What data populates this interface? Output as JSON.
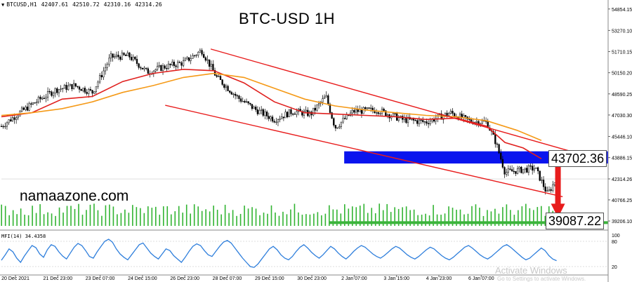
{
  "header": {
    "symbol": "BTCUSD,H1",
    "open": "42407.61",
    "high": "42510.72",
    "low": "42310.16",
    "close": "42314.26"
  },
  "title": "BTC-USD 1H",
  "brand": "namaazone.com",
  "price_labels": {
    "resistance": "43702.36",
    "target": "39087.22"
  },
  "mfi_label": "MFI(14) 34.4358",
  "watermark": {
    "line1": "Activate Windows",
    "line2": "Go to Settings to activate Windows."
  },
  "colors": {
    "candle": "#000000",
    "ema_red": "#e0201e",
    "ema_orange": "#f59a18",
    "channel": "#e81c1c",
    "resistance_zone": "#0a14ee",
    "support_line": "#3cb43c",
    "arrow": "#e81c1c",
    "volume": "#32b432",
    "mfi": "#2f7fdc"
  },
  "chart_data": {
    "type": "candlestick",
    "title": "BTC-USD 1H",
    "symbol": "BTCUSD",
    "timeframe": "H1",
    "y_axis": {
      "ticks": [
        "54854.15",
        "53270.10",
        "51710.15",
        "50150.20",
        "48590.25",
        "47030.30",
        "45446.10",
        "43886.15",
        "42314.26",
        "40766.25",
        "39206.10"
      ],
      "current_price": "42314.26",
      "range": [
        38950,
        55000
      ]
    },
    "x_axis": {
      "ticks": [
        "20 Dec 2021",
        "21 Dec 23:00",
        "23 Dec 07:00",
        "24 Dec 15:00",
        "26 Dec 23:00",
        "28 Dec 07:00",
        "29 Dec 15:00",
        "30 Dec 23:00",
        "2 Jan 07:00",
        "3 Jan 15:00",
        "4 Jan 23:00",
        "6 Jan 07:00"
      ]
    },
    "price_path": [
      {
        "t": 0,
        "p": 46200
      },
      {
        "t": 0.03,
        "p": 47200
      },
      {
        "t": 0.06,
        "p": 48100
      },
      {
        "t": 0.09,
        "p": 48900
      },
      {
        "t": 0.12,
        "p": 49200
      },
      {
        "t": 0.15,
        "p": 48700
      },
      {
        "t": 0.18,
        "p": 51300
      },
      {
        "t": 0.21,
        "p": 51400
      },
      {
        "t": 0.24,
        "p": 50200
      },
      {
        "t": 0.27,
        "p": 50600
      },
      {
        "t": 0.3,
        "p": 50900
      },
      {
        "t": 0.33,
        "p": 51800
      },
      {
        "t": 0.355,
        "p": 49800
      },
      {
        "t": 0.39,
        "p": 48300
      },
      {
        "t": 0.42,
        "p": 47400
      },
      {
        "t": 0.45,
        "p": 46700
      },
      {
        "t": 0.48,
        "p": 47300
      },
      {
        "t": 0.51,
        "p": 47100
      },
      {
        "t": 0.535,
        "p": 48400
      },
      {
        "t": 0.55,
        "p": 46100
      },
      {
        "t": 0.58,
        "p": 47300
      },
      {
        "t": 0.62,
        "p": 47400
      },
      {
        "t": 0.66,
        "p": 46700
      },
      {
        "t": 0.7,
        "p": 46500
      },
      {
        "t": 0.74,
        "p": 47200
      },
      {
        "t": 0.77,
        "p": 46600
      },
      {
        "t": 0.8,
        "p": 46500
      },
      {
        "t": 0.815,
        "p": 45000
      },
      {
        "t": 0.83,
        "p": 42800
      },
      {
        "t": 0.86,
        "p": 43000
      },
      {
        "t": 0.88,
        "p": 43100
      },
      {
        "t": 0.9,
        "p": 41200
      },
      {
        "t": 0.915,
        "p": 42314
      }
    ],
    "series": [
      {
        "name": "MA red",
        "values": [
          {
            "t": 0,
            "p": 46900
          },
          {
            "t": 0.05,
            "p": 47200
          },
          {
            "t": 0.1,
            "p": 48200
          },
          {
            "t": 0.15,
            "p": 48400
          },
          {
            "t": 0.2,
            "p": 49500
          },
          {
            "t": 0.25,
            "p": 50100
          },
          {
            "t": 0.3,
            "p": 50400
          },
          {
            "t": 0.35,
            "p": 50300
          },
          {
            "t": 0.4,
            "p": 49400
          },
          {
            "t": 0.45,
            "p": 48000
          },
          {
            "t": 0.5,
            "p": 47200
          },
          {
            "t": 0.55,
            "p": 47100
          },
          {
            "t": 0.6,
            "p": 47000
          },
          {
            "t": 0.65,
            "p": 46900
          },
          {
            "t": 0.7,
            "p": 46700
          },
          {
            "t": 0.75,
            "p": 46800
          },
          {
            "t": 0.8,
            "p": 46200
          },
          {
            "t": 0.83,
            "p": 45000
          },
          {
            "t": 0.86,
            "p": 44600
          },
          {
            "t": 0.89,
            "p": 43800
          }
        ]
      },
      {
        "name": "MA orange",
        "values": [
          {
            "t": 0,
            "p": 47000
          },
          {
            "t": 0.05,
            "p": 47200
          },
          {
            "t": 0.1,
            "p": 47500
          },
          {
            "t": 0.15,
            "p": 48000
          },
          {
            "t": 0.2,
            "p": 48700
          },
          {
            "t": 0.25,
            "p": 49200
          },
          {
            "t": 0.3,
            "p": 49800
          },
          {
            "t": 0.35,
            "p": 50100
          },
          {
            "t": 0.4,
            "p": 49800
          },
          {
            "t": 0.45,
            "p": 49000
          },
          {
            "t": 0.5,
            "p": 48200
          },
          {
            "t": 0.55,
            "p": 47700
          },
          {
            "t": 0.6,
            "p": 47400
          },
          {
            "t": 0.65,
            "p": 47200
          },
          {
            "t": 0.7,
            "p": 47000
          },
          {
            "t": 0.75,
            "p": 46900
          },
          {
            "t": 0.8,
            "p": 46600
          },
          {
            "t": 0.85,
            "p": 45900
          },
          {
            "t": 0.89,
            "p": 45150
          }
        ]
      }
    ],
    "annotations": {
      "channel_upper": [
        {
          "t": 0.345,
          "p": 51900
        },
        {
          "t": 0.97,
          "p": 43950
        }
      ],
      "channel_lower": [
        {
          "t": 0.27,
          "p": 47750
        },
        {
          "t": 0.925,
          "p": 41000
        }
      ],
      "resistance_zone": {
        "t0": 0.565,
        "t1": 1.0,
        "p_low": 43450,
        "p_high": 44350,
        "label": "43702.36"
      },
      "support_line": {
        "t0": 0.54,
        "t1": 1.0,
        "p": 39087.22,
        "label": "39087.22"
      },
      "arrow": {
        "t": 0.915,
        "p_from": 43500,
        "p_to": 39450
      }
    },
    "volume": {
      "type": "bar",
      "count": 145
    },
    "mfi": {
      "name": "MFI(14)",
      "current": 34.4358,
      "levels": [
        80,
        20
      ],
      "range": [
        0,
        100
      ],
      "values": [
        35,
        48,
        62,
        55,
        40,
        30,
        45,
        58,
        70,
        65,
        50,
        42,
        60,
        72,
        68,
        55,
        45,
        38,
        52,
        66,
        75,
        70,
        58,
        44,
        40,
        55,
        68,
        80,
        85,
        78,
        62,
        50,
        42,
        36,
        48,
        60,
        72,
        76,
        64,
        52,
        44,
        38,
        50,
        62,
        58,
        46,
        38,
        30,
        42,
        56,
        68,
        74,
        70,
        58,
        48,
        44,
        56,
        68,
        78,
        82,
        76,
        64,
        52,
        40,
        30,
        20,
        18,
        26,
        38,
        50,
        62,
        68,
        60,
        48,
        40,
        36,
        44,
        56,
        66,
        72,
        64,
        54,
        46,
        40,
        48,
        58,
        68,
        62,
        52,
        44,
        38,
        46,
        56,
        64,
        70,
        66,
        58,
        50,
        44,
        40,
        46,
        54,
        62,
        68,
        64,
        56,
        48,
        42,
        38,
        44,
        52,
        60,
        66,
        62,
        54,
        46,
        40,
        36,
        42,
        50,
        58,
        66,
        70,
        64,
        56,
        48,
        42,
        38,
        44,
        52,
        60,
        68,
        72,
        66,
        58,
        50,
        42,
        36,
        40,
        48,
        56,
        64,
        58,
        46,
        38,
        34
      ]
    }
  }
}
